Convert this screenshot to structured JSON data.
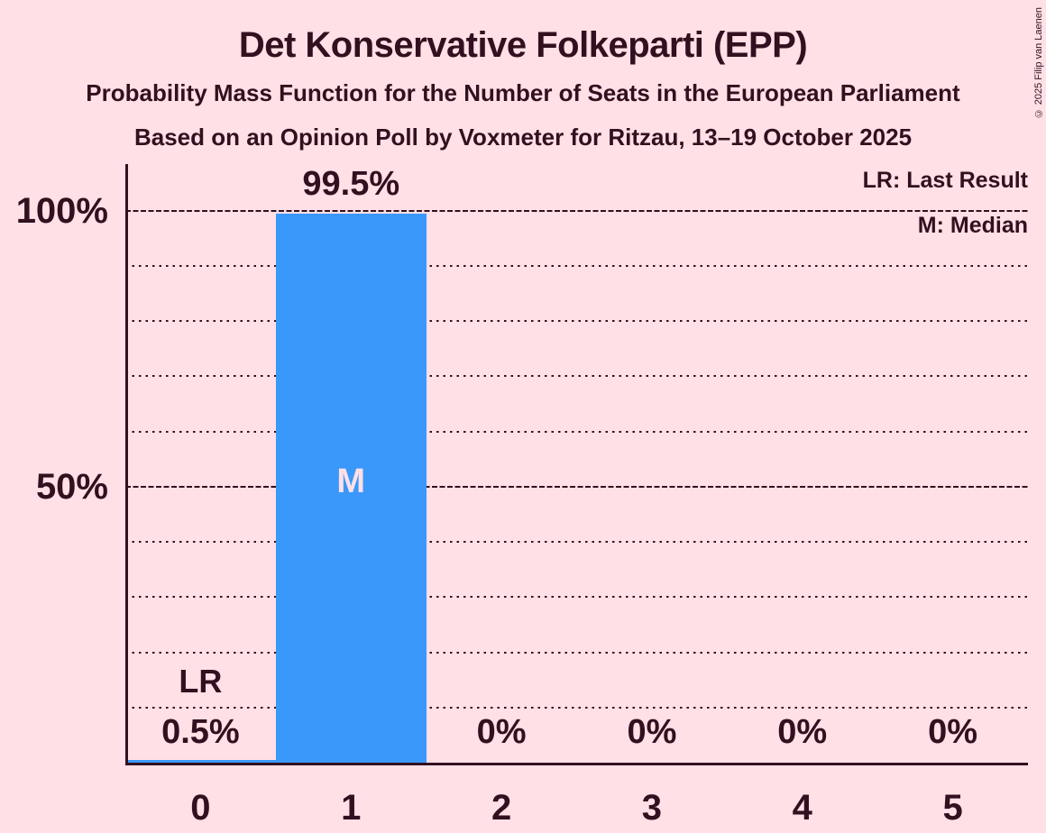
{
  "copyright": "© 2025 Filip van Laenen",
  "chart_data": {
    "type": "bar",
    "title": "Det Konservative Folkeparti (EPP)",
    "subtitle": "Probability Mass Function for the Number of Seats in the European Parliament",
    "note": "Based on an Opinion Poll by Voxmeter for Ritzau, 13–19 October 2025",
    "categories": [
      "0",
      "1",
      "2",
      "3",
      "4",
      "5"
    ],
    "values": [
      0.5,
      99.5,
      0,
      0,
      0,
      0
    ],
    "value_labels": [
      "0.5%",
      "99.5%",
      "0%",
      "0%",
      "0%",
      "0%"
    ],
    "ylim": [
      0,
      100
    ],
    "y_ticks": [
      {
        "pct": 100,
        "label": "100%"
      },
      {
        "pct": 50,
        "label": "50%"
      }
    ],
    "grid_minor_pcts": [
      10,
      20,
      30,
      40,
      60,
      70,
      80,
      90
    ],
    "grid_major_pcts": [
      50,
      100
    ],
    "legend": {
      "lr": "LR: Last Result",
      "m": "M: Median"
    },
    "annotations": {
      "last_result": {
        "category_index": 0,
        "label": "LR"
      },
      "median": {
        "category_index": 1,
        "label": "M"
      }
    },
    "colors": {
      "background": "#ffe0e6",
      "bar": "#3b98fb",
      "text": "#33101f",
      "median_label": "#ffe0e6"
    }
  }
}
